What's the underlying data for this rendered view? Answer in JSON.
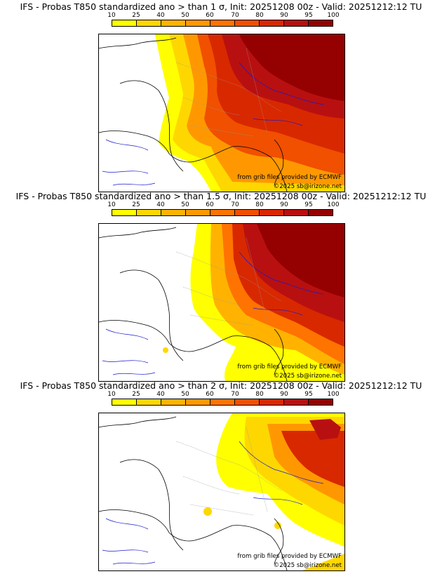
{
  "colorbar": {
    "ticks": [
      "10",
      "25",
      "40",
      "50",
      "60",
      "70",
      "80",
      "90",
      "95",
      "100"
    ],
    "colors": [
      "#ffff00",
      "#ffd700",
      "#ffb300",
      "#ff9800",
      "#ff7300",
      "#f05000",
      "#d82800",
      "#b81010",
      "#950000"
    ]
  },
  "panels": [
    {
      "title": "IFS - Probas T850  standardized ano > than 1 σ, Init: 20251208 00z - Valid: 20251212:12 TU",
      "threshold": "1 σ"
    },
    {
      "title": "IFS - Probas T850  standardized ano > than 1.5 σ, Init: 20251208 00z - Valid: 20251212:12 TU",
      "threshold": "1.5 σ"
    },
    {
      "title": "IFS - Probas T850  standardized ano > than 2 σ, Init: 20251208 00z - Valid: 20251212:12 TU",
      "threshold": "2 σ"
    }
  ],
  "credits": {
    "source": "from grib files provided by ECMWF",
    "copyright": "©2025 sb@irizone.net"
  },
  "colors": {
    "coast": "#000000",
    "rivers": "#1a1acc",
    "borders": "#9a9a9a"
  }
}
